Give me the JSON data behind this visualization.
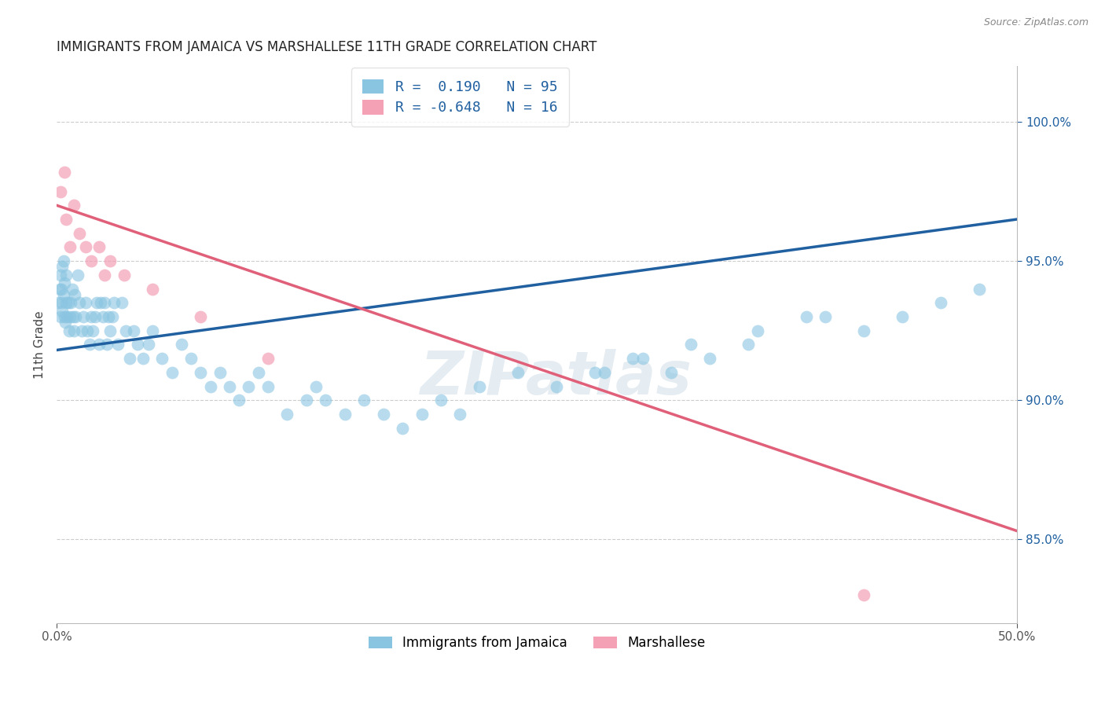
{
  "title": "IMMIGRANTS FROM JAMAICA VS MARSHALLESE 11TH GRADE CORRELATION CHART",
  "source": "Source: ZipAtlas.com",
  "ylabel": "11th Grade",
  "xlim": [
    0.0,
    50.0
  ],
  "ylim": [
    82.0,
    102.0
  ],
  "right_yticks": [
    85.0,
    90.0,
    95.0,
    100.0
  ],
  "jamaica_R": 0.19,
  "jamaica_N": 95,
  "marshallese_R": -0.648,
  "marshallese_N": 16,
  "blue_color": "#89c4e1",
  "pink_color": "#f4a0b5",
  "blue_line_color": "#2060a0",
  "pink_line_color": "#e0607a",
  "watermark": "ZIPatlas",
  "legend_label_1": "Immigrants from Jamaica",
  "legend_label_2": "Marshallese",
  "blue_line_x0": 0.0,
  "blue_line_y0": 91.8,
  "blue_line_x1": 50.0,
  "blue_line_y1": 96.5,
  "pink_line_x0": 0.0,
  "pink_line_y0": 97.0,
  "pink_line_x1": 50.0,
  "pink_line_y1": 85.3,
  "jamaica_x": [
    0.1,
    0.15,
    0.2,
    0.2,
    0.25,
    0.25,
    0.3,
    0.3,
    0.35,
    0.35,
    0.4,
    0.4,
    0.45,
    0.5,
    0.5,
    0.55,
    0.6,
    0.65,
    0.7,
    0.75,
    0.8,
    0.85,
    0.9,
    0.95,
    1.0,
    1.1,
    1.2,
    1.3,
    1.4,
    1.5,
    1.6,
    1.7,
    1.8,
    1.9,
    2.0,
    2.1,
    2.2,
    2.3,
    2.4,
    2.5,
    2.6,
    2.7,
    2.8,
    2.9,
    3.0,
    3.2,
    3.4,
    3.6,
    3.8,
    4.0,
    4.2,
    4.5,
    4.8,
    5.0,
    5.5,
    6.0,
    6.5,
    7.0,
    7.5,
    8.0,
    8.5,
    9.0,
    9.5,
    10.0,
    10.5,
    11.0,
    12.0,
    13.0,
    13.5,
    14.0,
    15.0,
    16.0,
    17.0,
    18.0,
    19.0,
    20.0,
    21.0,
    22.0,
    24.0,
    26.0,
    28.0,
    30.0,
    32.0,
    34.0,
    36.0,
    40.0,
    42.0,
    44.0,
    46.0,
    48.0,
    28.5,
    30.5,
    33.0,
    36.5,
    39.0
  ],
  "jamaica_y": [
    93.5,
    94.0,
    93.0,
    94.5,
    93.5,
    94.0,
    94.8,
    93.2,
    95.0,
    93.8,
    93.0,
    94.2,
    92.8,
    93.5,
    94.5,
    93.0,
    93.5,
    92.5,
    93.0,
    93.5,
    94.0,
    93.0,
    92.5,
    93.8,
    93.0,
    94.5,
    93.5,
    92.5,
    93.0,
    93.5,
    92.5,
    92.0,
    93.0,
    92.5,
    93.0,
    93.5,
    92.0,
    93.5,
    93.0,
    93.5,
    92.0,
    93.0,
    92.5,
    93.0,
    93.5,
    92.0,
    93.5,
    92.5,
    91.5,
    92.5,
    92.0,
    91.5,
    92.0,
    92.5,
    91.5,
    91.0,
    92.0,
    91.5,
    91.0,
    90.5,
    91.0,
    90.5,
    90.0,
    90.5,
    91.0,
    90.5,
    89.5,
    90.0,
    90.5,
    90.0,
    89.5,
    90.0,
    89.5,
    89.0,
    89.5,
    90.0,
    89.5,
    90.5,
    91.0,
    90.5,
    91.0,
    91.5,
    91.0,
    91.5,
    92.0,
    93.0,
    92.5,
    93.0,
    93.5,
    94.0,
    91.0,
    91.5,
    92.0,
    92.5,
    93.0
  ],
  "marshallese_x": [
    0.2,
    0.4,
    0.5,
    0.7,
    0.9,
    1.2,
    1.5,
    1.8,
    2.2,
    2.5,
    2.8,
    3.5,
    5.0,
    7.5,
    11.0,
    42.0
  ],
  "marshallese_y": [
    97.5,
    98.2,
    96.5,
    95.5,
    97.0,
    96.0,
    95.5,
    95.0,
    95.5,
    94.5,
    95.0,
    94.5,
    94.0,
    93.0,
    91.5,
    83.0
  ]
}
